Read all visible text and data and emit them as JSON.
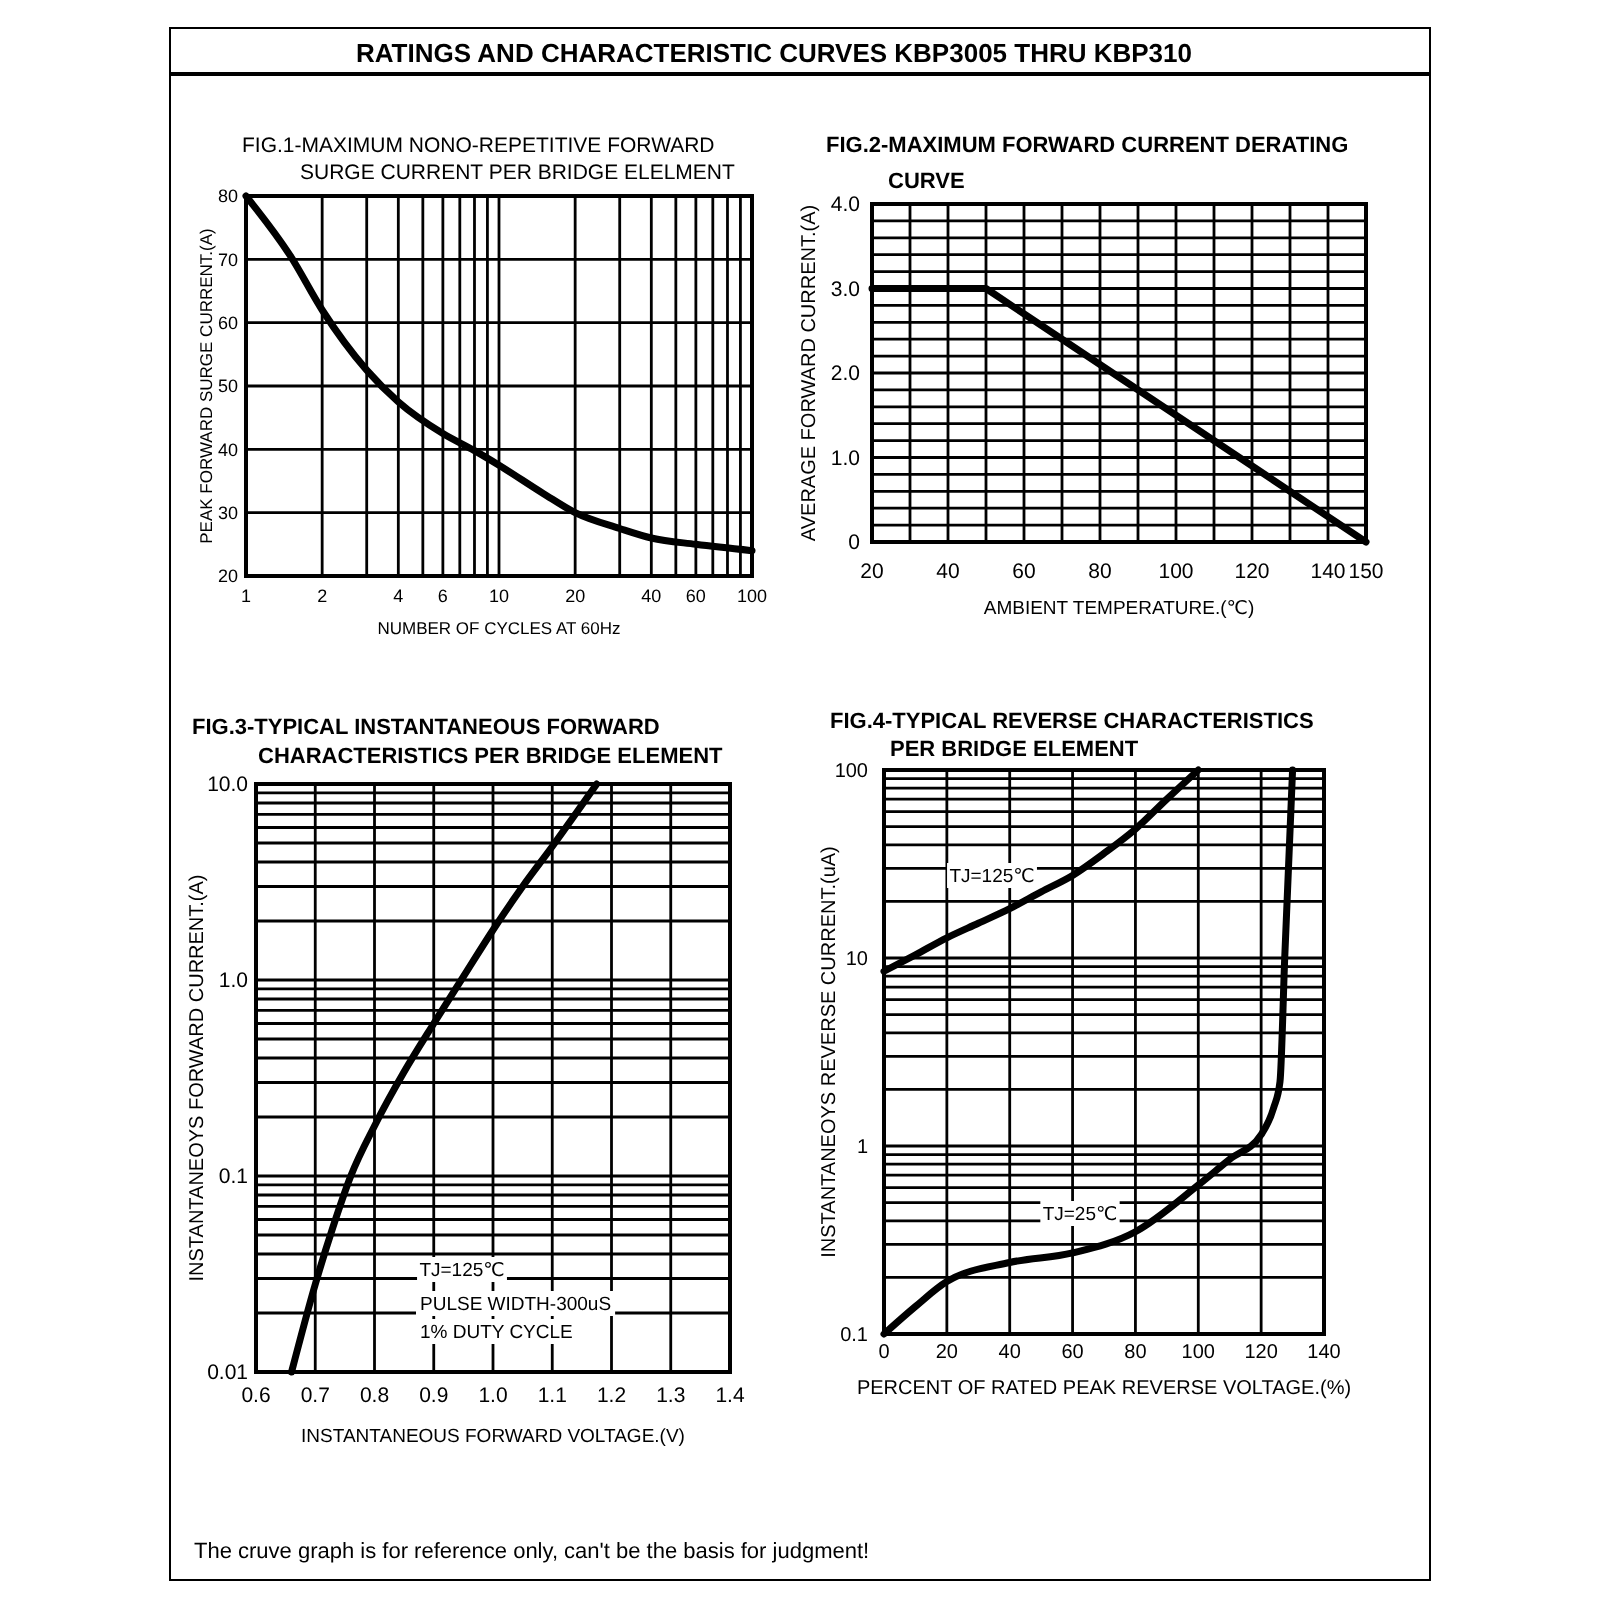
{
  "chart_data": [
    {
      "type": "other",
      "title": "RATINGS AND CHARACTERISTIC CURVES KBP3005 THRU KBP310"
    },
    {
      "type": "line",
      "title": "FIG.1-MAXIMUM NONO-REPETITIVE FORWARD SURGE CURRENT PER BRIDGE ELELMENT",
      "xlabel": "NUMBER OF CYCLES AT 60Hz",
      "ylabel": "PEAK FORWARD SURGE CURRENT.(A)",
      "log": "x",
      "x": [
        1,
        1.5,
        2,
        3,
        4,
        6,
        8,
        10,
        15,
        20,
        30,
        40,
        60,
        100
      ],
      "values": [
        80,
        70.5,
        62,
        52.5,
        47.5,
        42.5,
        39.8,
        37.5,
        33,
        30,
        27.5,
        26,
        25,
        24
      ],
      "color": "#000000",
      "xlim": [
        1,
        100
      ],
      "ylim": [
        20,
        80
      ],
      "xticks": [
        1,
        2,
        {
          "value": 3,
          "label": null
        },
        4,
        {
          "value": 5,
          "label": null
        },
        6,
        {
          "value": 7,
          "label": null
        },
        {
          "value": 8,
          "label": null
        },
        {
          "value": 9,
          "label": null
        },
        10,
        20,
        {
          "value": 30,
          "label": null
        },
        40,
        {
          "value": 50,
          "label": null
        },
        60,
        {
          "value": 70,
          "label": null
        },
        {
          "value": 80,
          "label": null
        },
        {
          "value": 90,
          "label": null
        },
        100
      ],
      "yticks": [
        20,
        30,
        40,
        50,
        60,
        70,
        80
      ],
      "grid": true
    },
    {
      "type": "line",
      "title": "FIG.2-MAXIMUM FORWARD CURRENT DERATING CURVE",
      "xlabel": "AMBIENT TEMPERATURE.(℃)",
      "ylabel": "AVERAGE FORWARD CURRENT.(A)",
      "x": [
        20,
        50,
        150
      ],
      "values": [
        3,
        3,
        0
      ],
      "color": "#000000",
      "xlim": [
        20,
        150
      ],
      "ylim": [
        0,
        4
      ],
      "xticks": [
        20,
        {
          "value": 30,
          "label": null
        },
        40,
        {
          "value": 50,
          "label": null
        },
        60,
        {
          "value": 70,
          "label": null
        },
        80,
        {
          "value": 90,
          "label": null
        },
        100,
        {
          "value": 110,
          "label": null
        },
        120,
        {
          "value": 130,
          "label": null
        },
        140,
        150
      ],
      "yticks": [
        0,
        {
          "value": 0.2,
          "label": null
        },
        {
          "value": 0.4,
          "label": null
        },
        {
          "value": 0.6,
          "label": null
        },
        {
          "value": 0.8,
          "label": null
        },
        {
          "value": 1,
          "label": "1.0"
        },
        {
          "value": 1.2,
          "label": null
        },
        {
          "value": 1.4,
          "label": null
        },
        {
          "value": 1.6,
          "label": null
        },
        {
          "value": 1.8,
          "label": null
        },
        {
          "value": 2,
          "label": "2.0"
        },
        {
          "value": 2.2,
          "label": null
        },
        {
          "value": 2.4,
          "label": null
        },
        {
          "value": 2.6,
          "label": null
        },
        {
          "value": 2.8,
          "label": null
        },
        {
          "value": 3,
          "label": "3.0"
        },
        {
          "value": 3.2,
          "label": null
        },
        {
          "value": 3.4,
          "label": null
        },
        {
          "value": 3.6,
          "label": null
        },
        {
          "value": 3.8,
          "label": null
        },
        {
          "value": 4,
          "label": "4.0"
        }
      ],
      "grid": true
    },
    {
      "type": "line",
      "title": "FIG.3-TYPICAL INSTANTANEOUS FORWARD CHARACTERISTICS PER BRIDGE ELEMENT",
      "xlabel": "INSTANTANEOUS FORWARD VOLTAGE.(V)",
      "ylabel": "INSTANTANEOYS FORWARD CURRENT.(A)",
      "log": "y",
      "x": [
        0.66,
        0.7,
        0.73,
        0.76,
        0.8,
        0.85,
        0.9,
        0.95,
        1.0,
        1.05,
        1.1,
        1.175
      ],
      "values": [
        0.01,
        0.028,
        0.055,
        0.1,
        0.18,
        0.34,
        0.6,
        1.04,
        1.8,
        3,
        4.8,
        10
      ],
      "color": "#000000",
      "xlim": [
        0.6,
        1.4
      ],
      "ylim": [
        0.01,
        10
      ],
      "xticks": [
        0.6,
        0.7,
        0.8,
        0.9,
        {
          "value": 1,
          "label": "1.0"
        },
        1.1,
        1.2,
        1.3,
        1.4
      ],
      "yticks": [
        0.01,
        {
          "value": 0.02,
          "label": null
        },
        {
          "value": 0.03,
          "label": null
        },
        {
          "value": 0.04,
          "label": null
        },
        {
          "value": 0.05,
          "label": null
        },
        {
          "value": 0.06,
          "label": null
        },
        {
          "value": 0.07,
          "label": null
        },
        {
          "value": 0.08,
          "label": null
        },
        {
          "value": 0.09,
          "label": null
        },
        0.1,
        {
          "value": 0.2,
          "label": null
        },
        {
          "value": 0.3,
          "label": null
        },
        {
          "value": 0.4,
          "label": null
        },
        {
          "value": 0.5,
          "label": null
        },
        {
          "value": 0.6,
          "label": null
        },
        {
          "value": 0.7,
          "label": null
        },
        {
          "value": 0.8,
          "label": null
        },
        {
          "value": 0.9,
          "label": null
        },
        {
          "value": 1,
          "label": "1.0"
        },
        {
          "value": 2,
          "label": null
        },
        {
          "value": 3,
          "label": null
        },
        {
          "value": 4,
          "label": null
        },
        {
          "value": 5,
          "label": null
        },
        {
          "value": 6,
          "label": null
        },
        {
          "value": 7,
          "label": null
        },
        {
          "value": 8,
          "label": null
        },
        {
          "value": 9,
          "label": null
        },
        {
          "value": 10,
          "label": "10.0"
        }
      ],
      "grid": true,
      "annotations": [
        "TJ=125℃",
        "PULSE WIDTH-300uS",
        "1% DUTY CYCLE"
      ]
    },
    {
      "type": "line",
      "title": "FIG.4-TYPICAL REVERSE CHARACTERISTICS PER BRIDGE ELEMENT",
      "xlabel": "PERCENT OF RATED PEAK REVERSE VOLTAGE.(%)",
      "ylabel": "INSTANTANEOYS REVERSE CURRENT.(uA)",
      "log": "y",
      "series": [
        {
          "name": "TJ=125℃",
          "color": "#000000",
          "x": [
            0,
            10,
            20,
            30,
            40,
            50,
            60,
            70,
            80,
            90,
            100
          ],
          "values": [
            8.5,
            10.4,
            12.8,
            15.3,
            18.3,
            22.5,
            27.5,
            36,
            48.5,
            70,
            100
          ]
        },
        {
          "name": "TJ=25℃",
          "color": "#000000",
          "x": [
            0,
            10,
            20,
            40,
            60,
            80,
            100,
            110,
            120,
            124,
            126,
            127.5,
            130
          ],
          "values": [
            0.1,
            0.14,
            0.19,
            0.24,
            0.27,
            0.35,
            0.62,
            0.85,
            1.15,
            1.6,
            2.2,
            10,
            100
          ]
        }
      ],
      "xlim": [
        0,
        140
      ],
      "ylim": [
        0.1,
        100
      ],
      "xticks": [
        0,
        20,
        40,
        60,
        80,
        100,
        120,
        140
      ],
      "yticks": [
        0.1,
        {
          "value": 0.2,
          "label": null
        },
        {
          "value": 0.3,
          "label": null
        },
        {
          "value": 0.4,
          "label": null
        },
        {
          "value": 0.5,
          "label": null
        },
        {
          "value": 0.6,
          "label": null
        },
        {
          "value": 0.7,
          "label": null
        },
        {
          "value": 0.8,
          "label": null
        },
        {
          "value": 0.9,
          "label": null
        },
        1,
        {
          "value": 2,
          "label": null
        },
        {
          "value": 3,
          "label": null
        },
        {
          "value": 4,
          "label": null
        },
        {
          "value": 5,
          "label": null
        },
        {
          "value": 6,
          "label": null
        },
        {
          "value": 7,
          "label": null
        },
        {
          "value": 8,
          "label": null
        },
        {
          "value": 9,
          "label": null
        },
        10,
        {
          "value": 20,
          "label": null
        },
        {
          "value": 30,
          "label": null
        },
        {
          "value": 40,
          "label": null
        },
        {
          "value": 50,
          "label": null
        },
        {
          "value": 60,
          "label": null
        },
        {
          "value": 70,
          "label": null
        },
        {
          "value": 80,
          "label": null
        },
        {
          "value": 90,
          "label": null
        },
        100
      ],
      "grid": true
    },
    {
      "type": "other",
      "annotations": [
        "The cruve graph is for reference only, can't be the basis for judgment!"
      ]
    }
  ]
}
